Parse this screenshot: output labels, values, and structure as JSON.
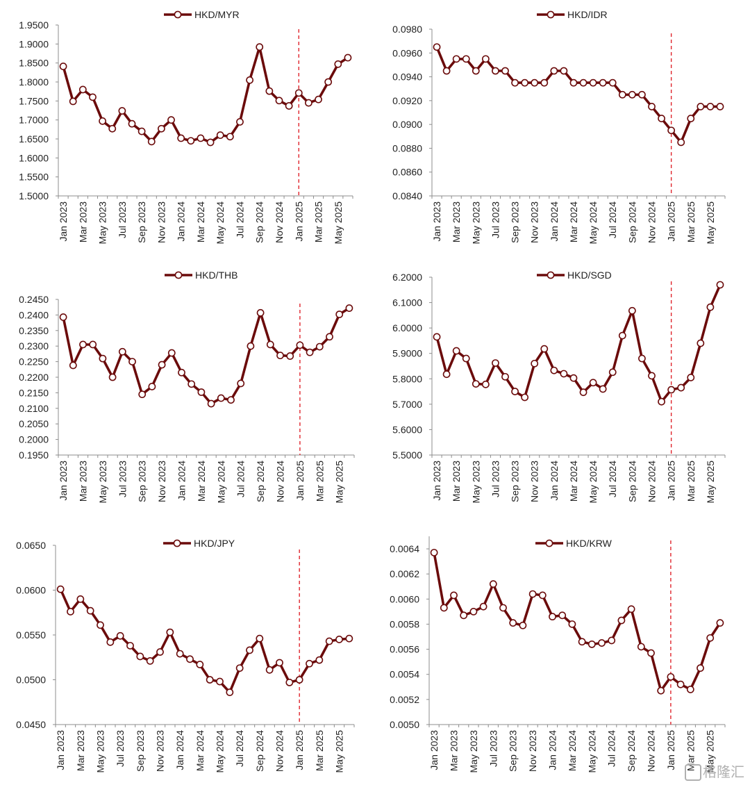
{
  "colors": {
    "line": "#6b0b0b",
    "marker_fill": "#ffffff",
    "axis": "#8c8c8c",
    "dashed_ref": "#e0242c",
    "text": "#222222"
  },
  "watermark": {
    "text": "格隆汇"
  },
  "chart_data": [
    {
      "type": "line",
      "legend": "HKD/MYR",
      "ylim": [
        1.5,
        1.95
      ],
      "yticks": [
        "1.5000",
        "1.5500",
        "1.6000",
        "1.6500",
        "1.7000",
        "1.7500",
        "1.8000",
        "1.8500",
        "1.9000",
        "1.9500"
      ],
      "xticks": [
        "Jan 2023",
        "Mar 2023",
        "May 2023",
        "Jul 2023",
        "Sep 2023",
        "Nov 2023",
        "Jan 2024",
        "Mar 2024",
        "May 2024",
        "Jul 2024",
        "Sep 2024",
        "Nov 2024",
        "Jan 2025",
        "Mar 2025",
        "May 2025"
      ],
      "reference_line": "Jan 2025",
      "values": [
        1.841,
        1.749,
        1.78,
        1.76,
        1.697,
        1.677,
        1.724,
        1.69,
        1.67,
        1.643,
        1.677,
        1.7,
        1.652,
        1.645,
        1.652,
        1.641,
        1.66,
        1.656,
        1.695,
        1.805,
        1.892,
        1.776,
        1.751,
        1.737,
        1.771,
        1.745,
        1.754,
        1.8,
        1.847,
        1.864
      ]
    },
    {
      "type": "line",
      "legend": "HKD/IDR",
      "ylim": [
        0.084,
        0.098
      ],
      "yticks": [
        "0.0840",
        "0.0860",
        "0.0880",
        "0.0900",
        "0.0920",
        "0.0940",
        "0.0960",
        "0.0980"
      ],
      "xticks": [
        "Jan 2023",
        "Mar 2023",
        "May 2023",
        "Jul 2023",
        "Sep 2023",
        "Nov 2023",
        "Jan 2024",
        "Mar 2024",
        "May 2024",
        "Jul 2024",
        "Sep 2024",
        "Nov 2024",
        "Jan 2025",
        "Mar 2025",
        "May 2025"
      ],
      "reference_line": "Jan 2025",
      "values": [
        0.0965,
        0.0945,
        0.0955,
        0.0955,
        0.0945,
        0.0955,
        0.0945,
        0.0945,
        0.0935,
        0.0935,
        0.0935,
        0.0935,
        0.0945,
        0.0945,
        0.0935,
        0.0935,
        0.0935,
        0.0935,
        0.0935,
        0.0925,
        0.0925,
        0.0925,
        0.0915,
        0.0905,
        0.0895,
        0.0885,
        0.0905,
        0.0915,
        0.0915,
        0.0915
      ]
    },
    {
      "type": "line",
      "legend": "HKD/THB",
      "ylim": [
        0.195,
        0.245
      ],
      "yticks": [
        "0.1950",
        "0.2000",
        "0.2050",
        "0.2100",
        "0.2150",
        "0.2200",
        "0.2250",
        "0.2300",
        "0.2350",
        "0.2400",
        "0.2450"
      ],
      "xticks": [
        "Jan 2023",
        "Mar 2023",
        "May 2023",
        "Jul 2023",
        "Sep 2023",
        "Nov 2023",
        "Jan 2024",
        "Mar 2024",
        "May 2024",
        "Jul 2024",
        "Sep 2024",
        "Nov 2024",
        "Jan 2025",
        "Mar 2025",
        "May 2025"
      ],
      "reference_line": "Jan 2025",
      "values": [
        0.2393,
        0.2238,
        0.2305,
        0.2305,
        0.226,
        0.22,
        0.2282,
        0.225,
        0.2145,
        0.217,
        0.224,
        0.2278,
        0.2215,
        0.2178,
        0.2152,
        0.2115,
        0.2133,
        0.2127,
        0.218,
        0.23,
        0.2407,
        0.2305,
        0.227,
        0.2268,
        0.2303,
        0.228,
        0.2298,
        0.233,
        0.2402,
        0.2422
      ]
    },
    {
      "type": "line",
      "legend": "HKD/SGD",
      "ylim": [
        5.5,
        6.2
      ],
      "yticks": [
        "5.5000",
        "5.6000",
        "5.7000",
        "5.8000",
        "5.9000",
        "6.0000",
        "6.1000",
        "6.2000"
      ],
      "xticks": [
        "Jan 2023",
        "Mar 2023",
        "May 2023",
        "Jul 2023",
        "Sep 2023",
        "Nov 2023",
        "Jan 2024",
        "Mar 2024",
        "May 2024",
        "Jul 2024",
        "Sep 2024",
        "Nov 2024",
        "Jan 2025",
        "Mar 2025",
        "May 2025"
      ],
      "reference_line": "Jan 2025",
      "values": [
        5.965,
        5.818,
        5.91,
        5.88,
        5.78,
        5.778,
        5.862,
        5.808,
        5.75,
        5.727,
        5.86,
        5.918,
        5.833,
        5.82,
        5.803,
        5.747,
        5.785,
        5.76,
        5.826,
        5.97,
        6.068,
        5.88,
        5.812,
        5.71,
        5.757,
        5.765,
        5.805,
        5.94,
        6.082,
        6.17
      ]
    },
    {
      "type": "line",
      "legend": "HKD/JPY",
      "ylim": [
        0.045,
        0.065
      ],
      "yticks": [
        "0.0450",
        "0.0500",
        "0.0550",
        "0.0600",
        "0.0650"
      ],
      "xticks": [
        "Jan 2023",
        "Mar 2023",
        "May 2023",
        "Jul 2023",
        "Sep 2023",
        "Nov 2023",
        "Jan 2024",
        "Mar 2024",
        "May 2024",
        "Jul 2024",
        "Sep 2024",
        "Nov 2024",
        "Jan 2025",
        "Mar 2025",
        "May 2025"
      ],
      "reference_line": "Jan 2025",
      "values": [
        0.0601,
        0.0576,
        0.059,
        0.0577,
        0.0561,
        0.0542,
        0.0549,
        0.0538,
        0.0526,
        0.0521,
        0.0531,
        0.0553,
        0.0529,
        0.0523,
        0.0517,
        0.05,
        0.0498,
        0.0486,
        0.0513,
        0.0533,
        0.0546,
        0.0511,
        0.0519,
        0.0497,
        0.05,
        0.0518,
        0.0522,
        0.0543,
        0.0545,
        0.0546
      ]
    },
    {
      "type": "line",
      "legend": "HKD/KRW",
      "ylim": [
        0.005,
        0.0065
      ],
      "yticks": [
        "0.0050",
        "0.0052",
        "0.0054",
        "0.0056",
        "0.0058",
        "0.0060",
        "0.0062",
        "0.0064"
      ],
      "xticks": [
        "Jan 2023",
        "Mar 2023",
        "May 2023",
        "Jul 2023",
        "Sep 2023",
        "Nov 2023",
        "Jan 2024",
        "Mar 2024",
        "May 2024",
        "Jul 2024",
        "Sep 2024",
        "Nov 2024",
        "Jan 2025",
        "Mar 2025",
        "May 2025"
      ],
      "reference_line": "Jan 2025",
      "values": [
        0.00637,
        0.00593,
        0.00603,
        0.00587,
        0.0059,
        0.00594,
        0.00612,
        0.00593,
        0.00581,
        0.00579,
        0.00604,
        0.00603,
        0.00586,
        0.00587,
        0.0058,
        0.00566,
        0.00564,
        0.00565,
        0.00567,
        0.00583,
        0.00592,
        0.00562,
        0.00557,
        0.00527,
        0.00538,
        0.00532,
        0.00528,
        0.00545,
        0.00569,
        0.00581
      ]
    }
  ]
}
